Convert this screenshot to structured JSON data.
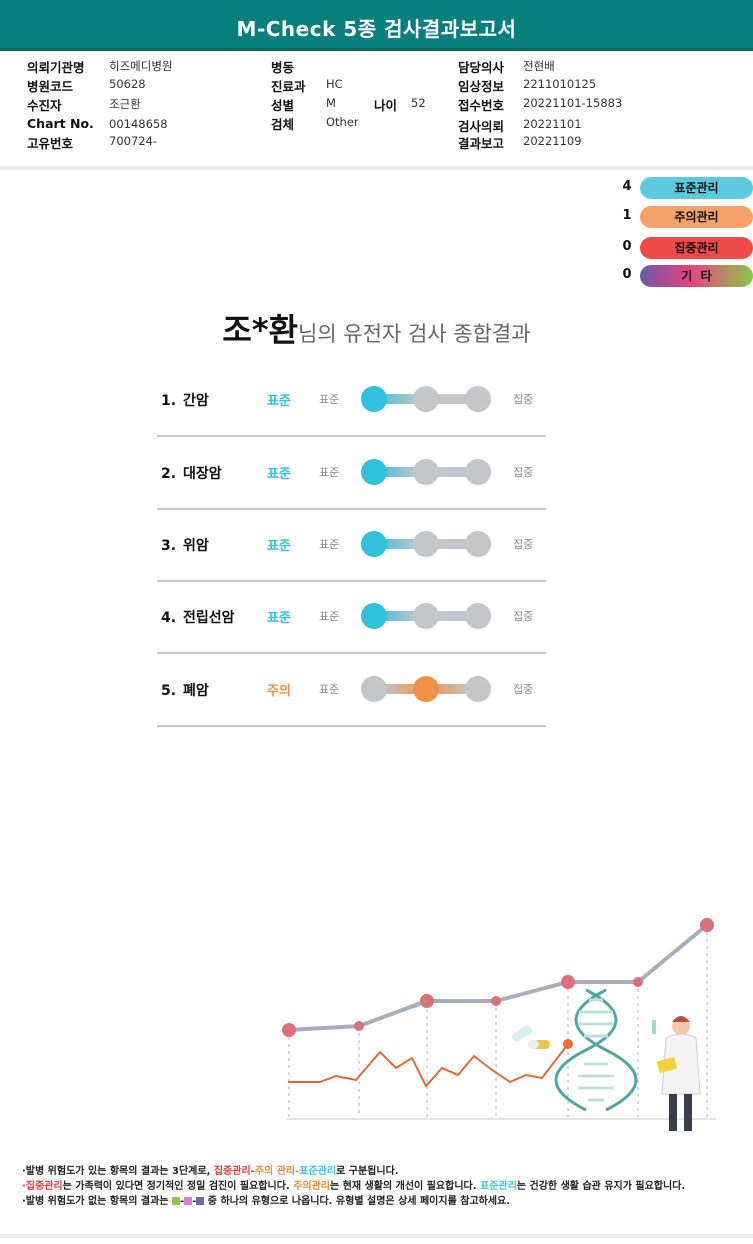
{
  "header": {
    "title": "M-Check 5종 검사결과보고서"
  },
  "info": {
    "col1": [
      {
        "label": "의뢰기관명",
        "value": "히즈메디병원"
      },
      {
        "label": "병원코드",
        "value": "50628"
      },
      {
        "label": "수진자",
        "value": "조근환"
      },
      {
        "label": "Chart No.",
        "value": "00148658"
      },
      {
        "label": "고유번호",
        "value": "700724-"
      }
    ],
    "col2": [
      {
        "label": "병동",
        "value": ""
      },
      {
        "label": "진료과",
        "value": "HC"
      },
      {
        "label": "성별",
        "value": "M"
      },
      {
        "label": "검체",
        "value": "Other"
      }
    ],
    "age": {
      "label": "나이",
      "value": "52"
    },
    "col3": [
      {
        "label": "담당의사",
        "value": "전현배"
      },
      {
        "label": "임상정보",
        "value": "2211010125"
      },
      {
        "label": "접수번호",
        "value": "20221101-15883"
      },
      {
        "label": "검사의뢰",
        "value": "20221101"
      },
      {
        "label": "결과보고",
        "value": "20221109"
      }
    ]
  },
  "legend": [
    {
      "count": "4",
      "label": "표준관리",
      "color": "#5ccbe0"
    },
    {
      "count": "1",
      "label": "주의관리",
      "color": "#f6a06a"
    },
    {
      "count": "0",
      "label": "집중관리",
      "color": "#ef4b4b"
    },
    {
      "count": "0",
      "label": "기  타",
      "color": "gradient"
    }
  ],
  "result": {
    "name": "조*환",
    "title_suffix": "님의 유전자 검사 종합결과"
  },
  "scale_labels": {
    "low": "표준",
    "high": "집중"
  },
  "items": [
    {
      "num": "1.",
      "name": "간암",
      "status": "표준",
      "level": 0
    },
    {
      "num": "2.",
      "name": "대장암",
      "status": "표준",
      "level": 0
    },
    {
      "num": "3.",
      "name": "위암",
      "status": "표준",
      "level": 0
    },
    {
      "num": "4.",
      "name": "전립선암",
      "status": "표준",
      "level": 0
    },
    {
      "num": "5.",
      "name": "폐암",
      "status": "주의",
      "level": 1
    }
  ],
  "colors": {
    "standard": "#31c0de",
    "caution": "#f0914a",
    "intensive": "#e84848",
    "header": "#077f7c"
  },
  "notes": {
    "line1_a": "·발병 위험도가 있는 항목의 결과는 3단계로, ",
    "line1_red": "집중관리",
    "line1_sep1": "-",
    "line1_orange": "주의 관리",
    "line1_sep2": "-",
    "line1_blue": "표준관리",
    "line1_b": "로 구분됩니다.",
    "line2_red": "·집중관리",
    "line2_a": "는 가족력이 있다면 정기적인 정밀 검진이 필요합니다. ",
    "line2_orange": "주의관리",
    "line2_b": "는 현재 생활의 개선이 필요합니다. ",
    "line2_blue": "표준관리",
    "line2_c": "는 건강한 생활 습관 유지가 필요합니다.",
    "line3_a": "·발병 위험도가 없는 항목의 결과는 ",
    "line3_b": " 중 하나의 유형으로 나옵니다. 유형별 설명은 상세 페이지를 참고하세요."
  }
}
